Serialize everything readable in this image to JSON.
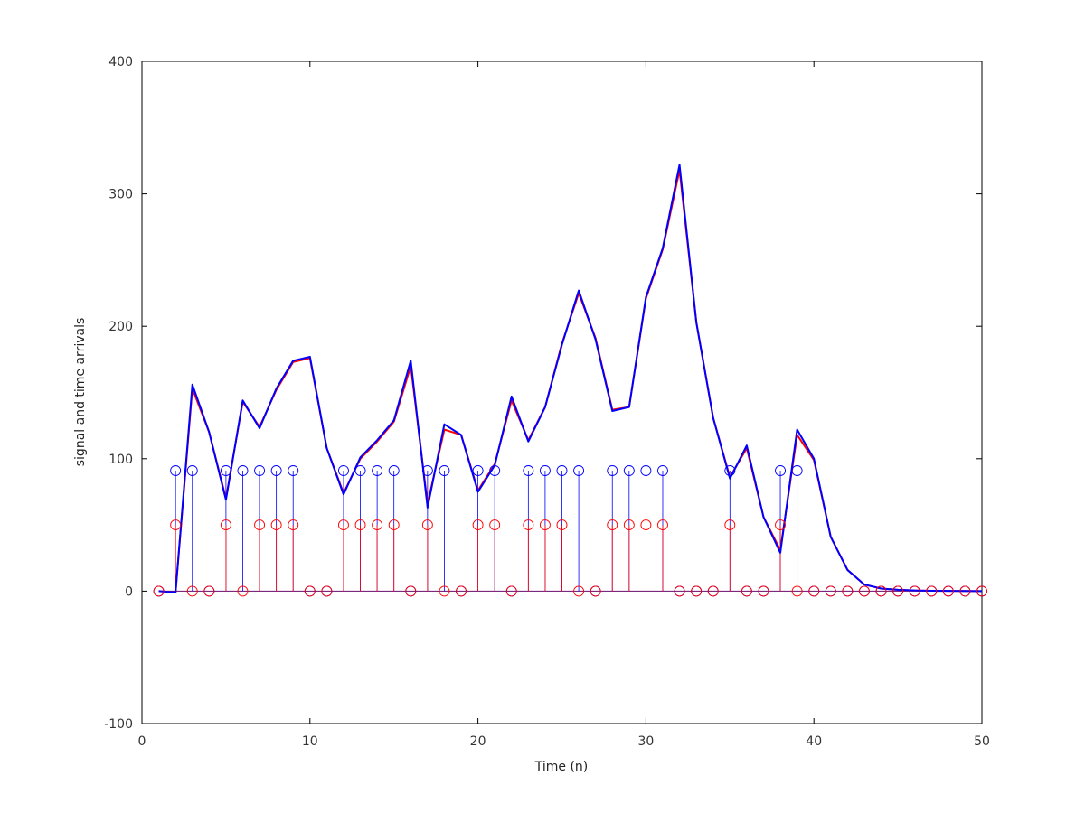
{
  "chart_data": {
    "type": "line",
    "title": "",
    "xlabel": "Time (n)",
    "ylabel": "signal and time arrivals",
    "xlim": [
      0,
      50
    ],
    "ylim": [
      -100,
      400
    ],
    "xticks": [
      0,
      10,
      20,
      30,
      40,
      50
    ],
    "yticks": [
      -100,
      0,
      100,
      200,
      300,
      400
    ],
    "grid": false,
    "legend": "none",
    "colors": {
      "red": "#ff0000",
      "blue": "#0000ff",
      "axis": "#000000"
    },
    "x": [
      1,
      2,
      3,
      4,
      5,
      6,
      7,
      8,
      9,
      10,
      11,
      12,
      13,
      14,
      15,
      16,
      17,
      18,
      19,
      20,
      21,
      22,
      23,
      24,
      25,
      26,
      27,
      28,
      29,
      30,
      31,
      32,
      33,
      34,
      35,
      36,
      37,
      38,
      39,
      40,
      41,
      42,
      43,
      44,
      45,
      46,
      47,
      48,
      49,
      50
    ],
    "series": [
      {
        "style": "line",
        "color": "#ff0000",
        "values": [
          0,
          -1,
          153,
          120,
          70,
          143,
          124,
          152,
          173,
          176,
          108,
          74,
          100,
          113,
          128,
          170,
          66,
          122,
          118,
          76,
          96,
          144,
          114,
          139,
          187,
          225,
          191,
          137,
          139,
          221,
          258,
          318,
          203,
          131,
          86,
          108,
          56,
          31,
          118,
          99,
          41,
          16,
          5,
          2,
          1,
          0.5,
          0.3,
          0.2,
          0.1,
          0
        ]
      },
      {
        "style": "line",
        "color": "#0000ff",
        "values": [
          0,
          -1,
          156,
          120,
          69,
          144,
          123,
          153,
          174,
          177,
          108,
          73,
          101,
          114,
          129,
          174,
          63,
          126,
          118,
          75,
          95,
          147,
          113,
          139,
          186,
          227,
          190,
          136,
          139,
          222,
          259,
          322,
          203,
          131,
          85,
          110,
          56,
          29,
          122,
          100,
          41,
          16,
          5,
          2,
          1,
          0.5,
          0.3,
          0.2,
          0.1,
          0
        ]
      },
      {
        "style": "stem",
        "color": "#ff0000",
        "values": [
          0,
          50,
          0,
          0,
          50,
          0,
          50,
          50,
          50,
          0,
          0,
          50,
          50,
          50,
          50,
          0,
          50,
          0,
          0,
          50,
          50,
          0,
          50,
          50,
          50,
          0,
          0,
          50,
          50,
          50,
          50,
          0,
          0,
          0,
          50,
          0,
          0,
          50,
          0,
          0,
          0,
          0,
          0,
          0,
          0,
          0,
          0,
          0,
          0,
          0
        ]
      },
      {
        "style": "stem",
        "color": "#0000ff",
        "values": [
          0,
          91,
          91,
          0,
          91,
          91,
          91,
          91,
          91,
          0,
          0,
          91,
          91,
          91,
          91,
          0,
          91,
          91,
          0,
          91,
          91,
          0,
          91,
          91,
          91,
          91,
          0,
          91,
          91,
          91,
          91,
          0,
          0,
          0,
          91,
          0,
          0,
          91,
          91,
          0,
          0,
          0,
          0,
          0,
          0,
          0,
          0,
          0,
          0,
          0
        ]
      }
    ]
  }
}
